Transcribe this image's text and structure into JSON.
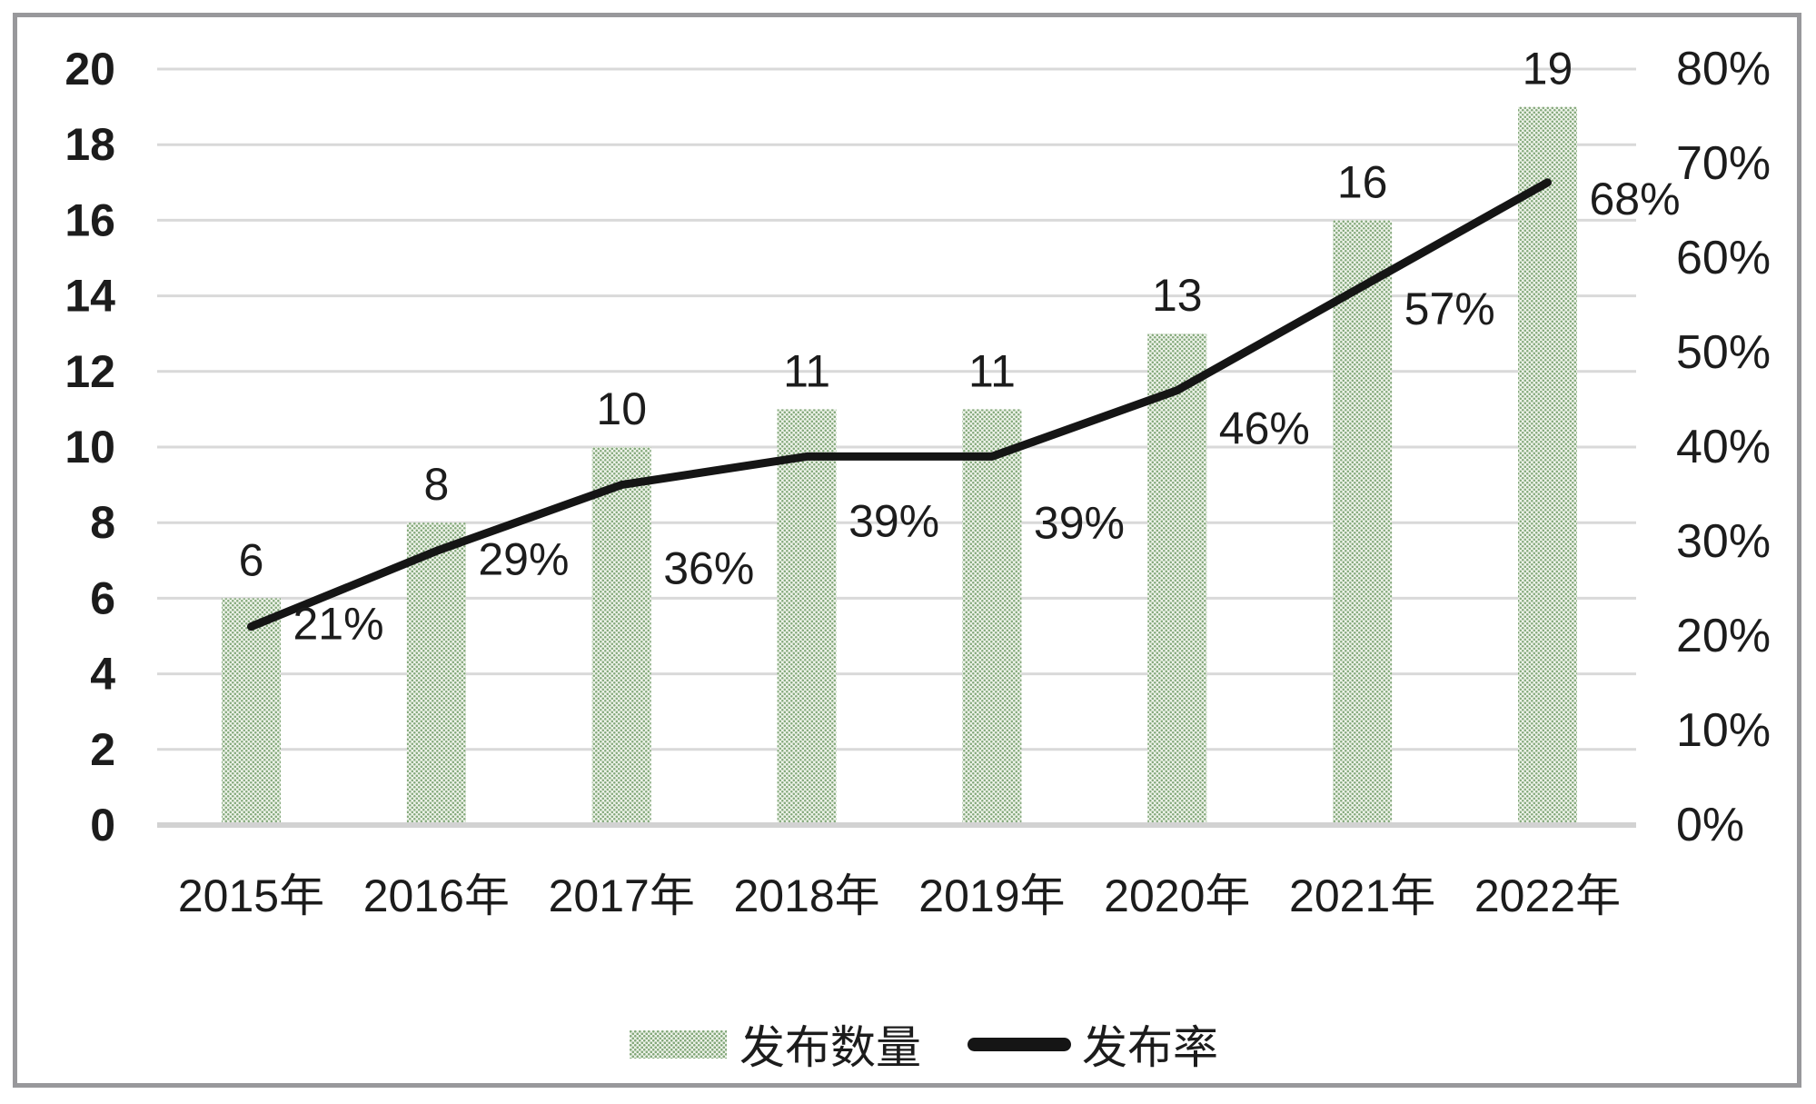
{
  "chart_data": {
    "type": "bar",
    "title": "",
    "categories": [
      "2015年",
      "2016年",
      "2017年",
      "2018年",
      "2019年",
      "2020年",
      "2021年",
      "2022年"
    ],
    "series": [
      {
        "name": "发布数量",
        "chart": "bar",
        "axis": "left",
        "values": [
          6,
          8,
          10,
          11,
          11,
          13,
          16,
          19
        ],
        "labels": [
          "6",
          "8",
          "10",
          "11",
          "11",
          "13",
          "16",
          "19"
        ]
      },
      {
        "name": "发布率",
        "chart": "line",
        "axis": "right",
        "values": [
          21,
          29,
          36,
          39,
          39,
          46,
          57,
          68
        ],
        "labels": [
          "21%",
          "29%",
          "36%",
          "39%",
          "39%",
          "46%",
          "57%",
          "68%"
        ]
      }
    ],
    "left_axis": {
      "min": 0,
      "max": 20,
      "step": 2,
      "ticks": [
        "0",
        "2",
        "4",
        "6",
        "8",
        "10",
        "12",
        "14",
        "16",
        "18",
        "20"
      ]
    },
    "right_axis": {
      "min": 0,
      "max": 80,
      "step": 10,
      "unit": "%",
      "ticks": [
        "0%",
        "10%",
        "20%",
        "30%",
        "40%",
        "50%",
        "60%",
        "70%",
        "80%"
      ]
    },
    "legend": {
      "position": "bottom",
      "bar_label": "发布数量",
      "line_label": "发布率"
    },
    "grid": true
  },
  "colors": {
    "bar_dot": "#83a87a",
    "bar_bg": "#edf2e9",
    "line": "#151515",
    "gridline": "#d9d9d9",
    "axis_line": "#d2d2d2",
    "text": "#1c1c1c",
    "frame": "#98989b",
    "background": "#ffffff"
  }
}
